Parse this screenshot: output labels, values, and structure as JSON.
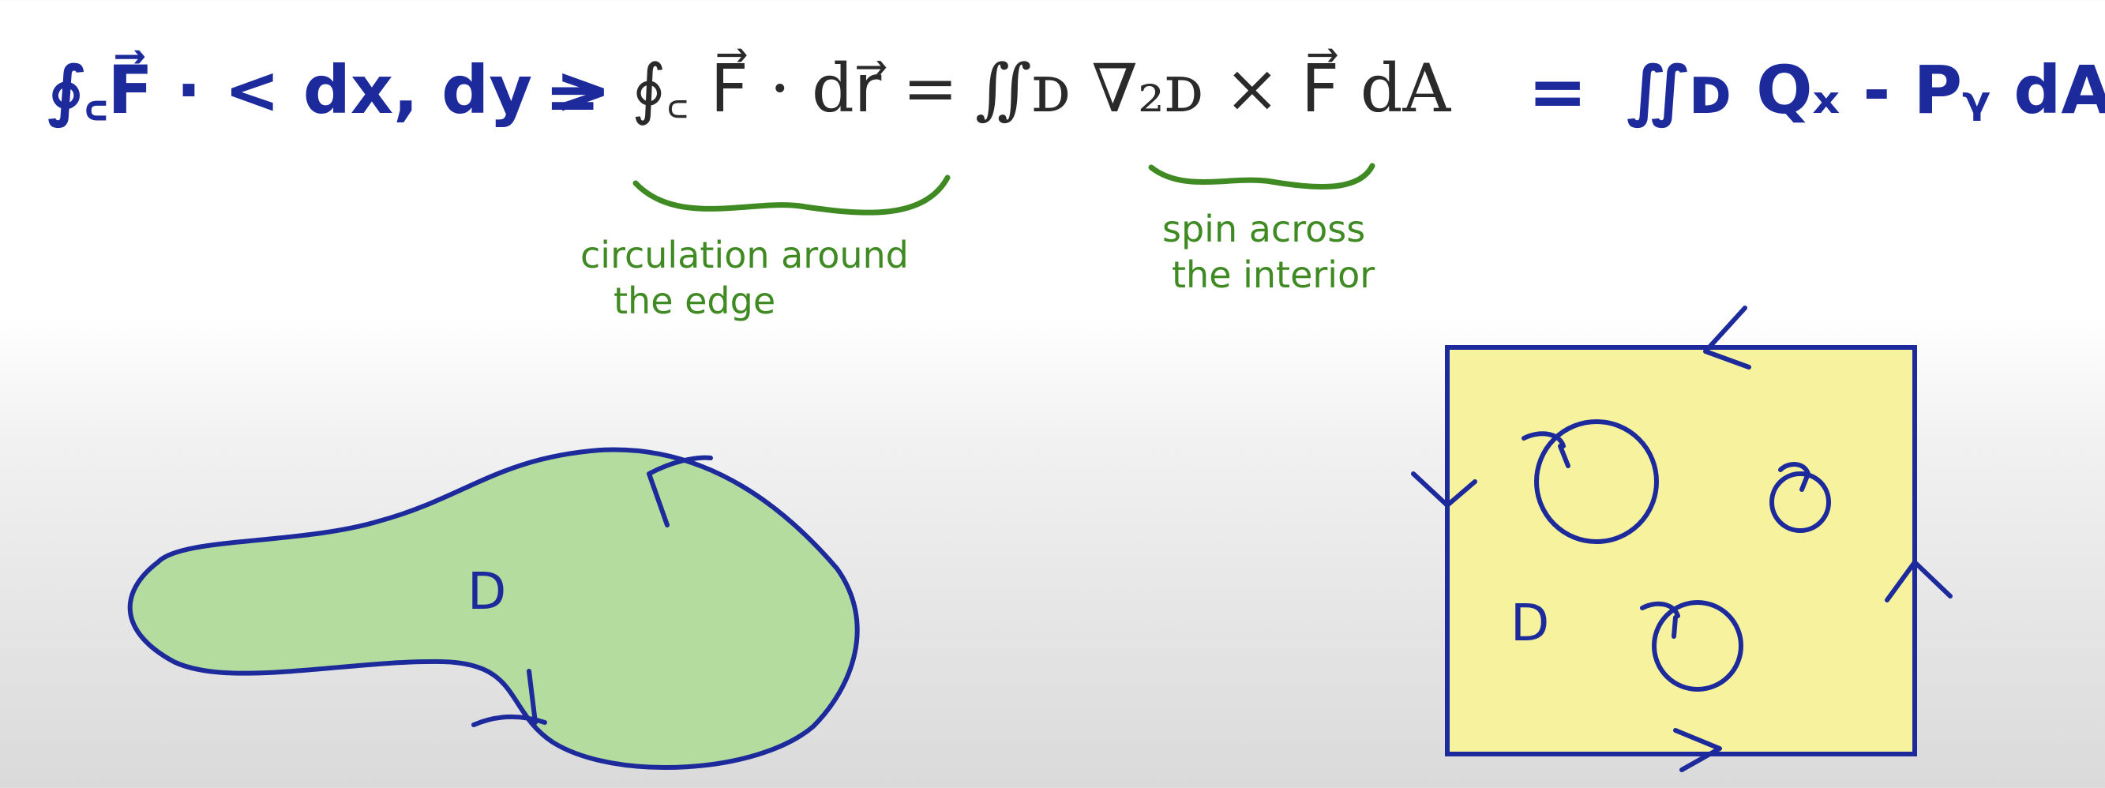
{
  "equation": {
    "lhs_handwritten": "∮꜀F⃗ · < dx, dy >",
    "eq1": "=",
    "line_integral": "∮꜀ F⃗ · dr⃗ =",
    "double_integral": "∬ᴅ ∇₂ᴅ × F⃗ dA",
    "eq2": "=",
    "rhs_handwritten": "∬ᴅ Qₓ - Pᵧ dA"
  },
  "annotations": {
    "circulation": [
      "circulation around",
      "the edge"
    ],
    "spin": [
      "spin across",
      "the interior"
    ]
  },
  "regions": {
    "left_label": "D",
    "right_label": "D"
  },
  "colors": {
    "ink_blue": "#1d2a9c",
    "ink_green": "#3f8a23",
    "fill_green": "#b4dc9e",
    "fill_yellow": "#f6f29e"
  }
}
